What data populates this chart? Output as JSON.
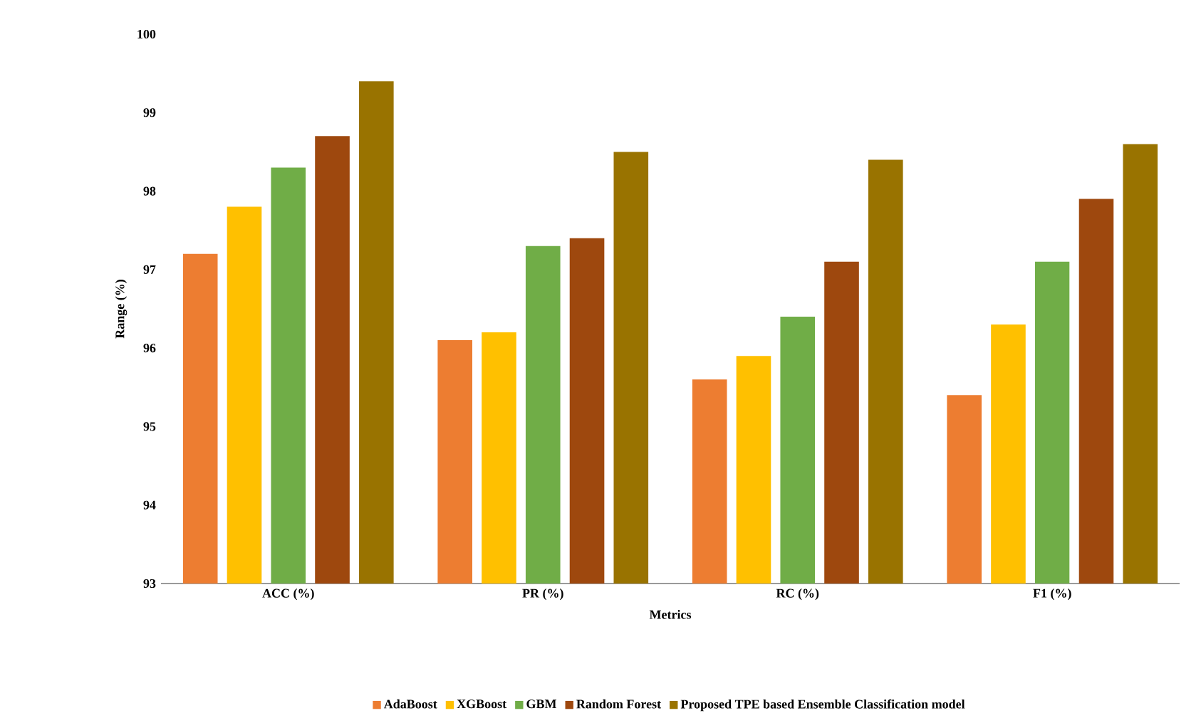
{
  "chart_data": {
    "type": "bar",
    "xlabel": "Metrics",
    "ylabel": "Range (%)",
    "categories": [
      "ACC (%)",
      "PR (%)",
      "RC (%)",
      "F1 (%)"
    ],
    "series": [
      {
        "name": "AdaBoost",
        "color": "#ed7d31",
        "values": [
          97.2,
          96.1,
          95.6,
          95.4
        ]
      },
      {
        "name": "XGBoost",
        "color": "#ffc000",
        "values": [
          97.8,
          96.2,
          95.9,
          96.3
        ]
      },
      {
        "name": "GBM",
        "color": "#70ad47",
        "values": [
          98.3,
          97.3,
          96.4,
          97.1
        ]
      },
      {
        "name": "Random Forest",
        "color": "#9e480e",
        "values": [
          98.7,
          97.4,
          97.1,
          97.9
        ]
      },
      {
        "name": "Proposed TPE based Ensemble Classification model",
        "color": "#997300",
        "values": [
          99.4,
          98.5,
          98.4,
          98.6
        ]
      }
    ],
    "ylim": [
      93,
      100
    ],
    "yticks": [
      93,
      94,
      95,
      96,
      97,
      98,
      99,
      100
    ],
    "grid": false,
    "legend": "bottom"
  }
}
